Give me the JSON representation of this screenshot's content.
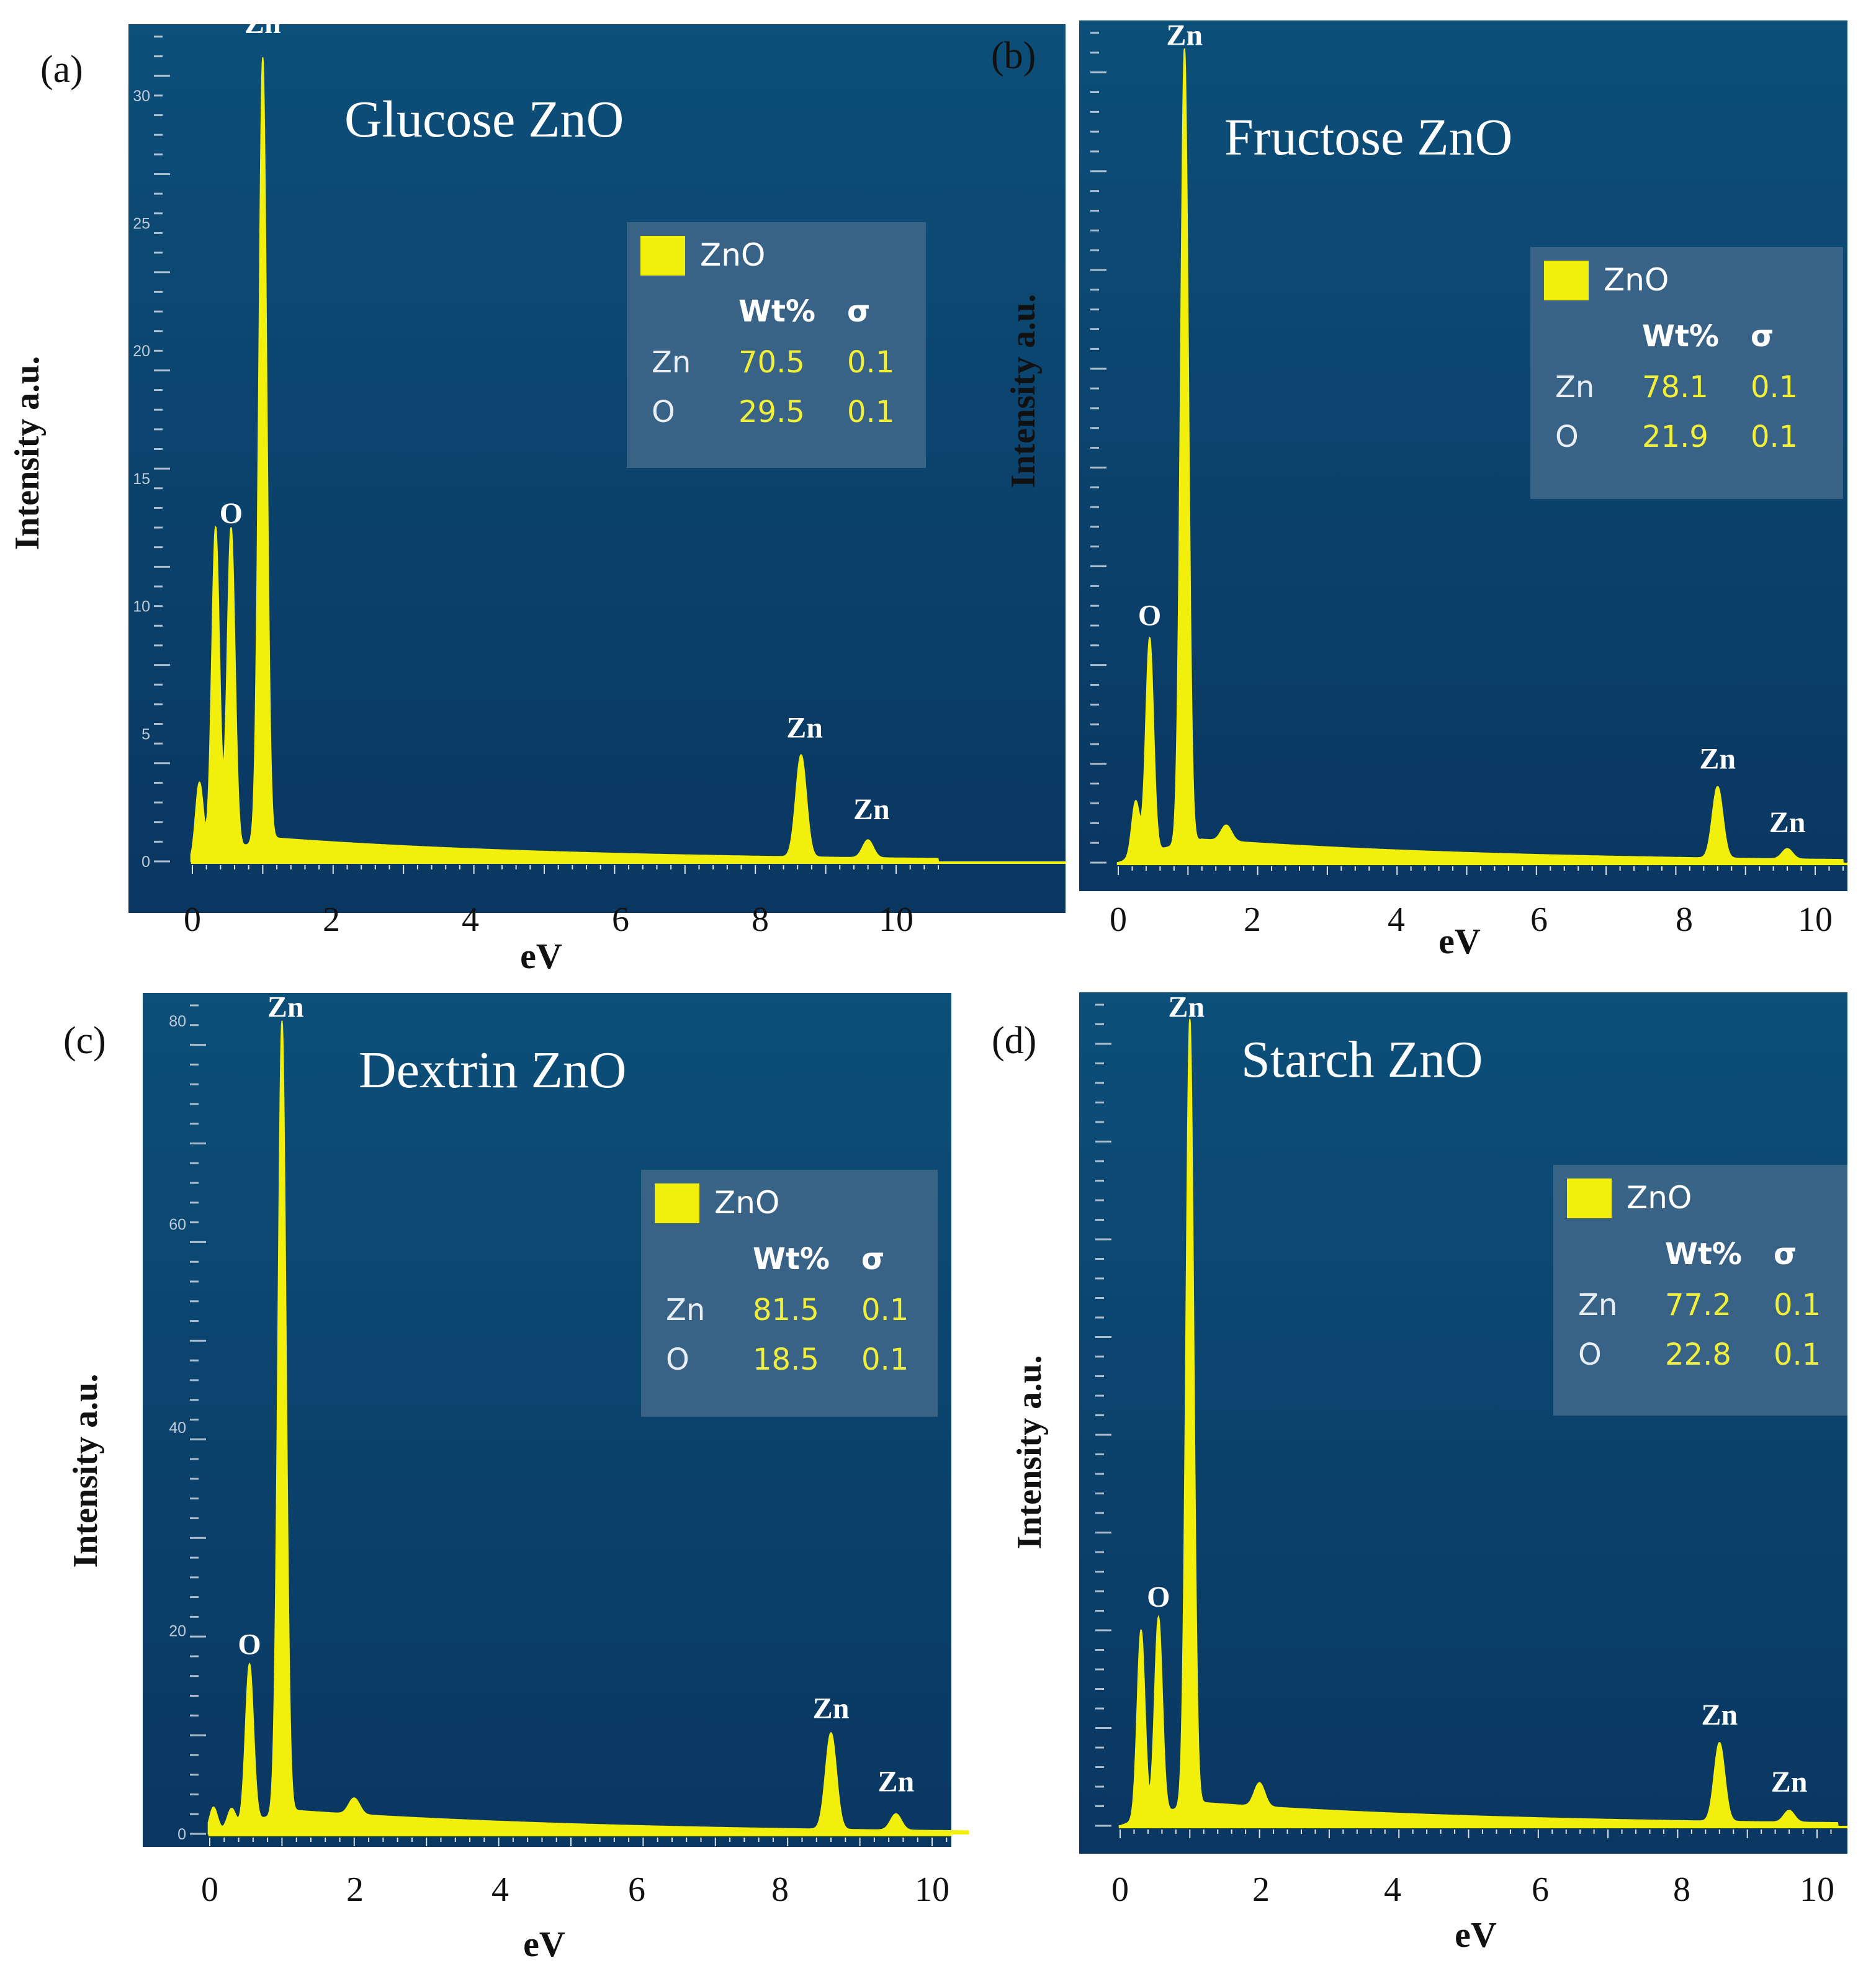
{
  "figure": {
    "panels": [
      {
        "tag": "(a)",
        "title": "Glucose ZnO",
        "ylabel": "Intensity a.u.",
        "xlabel": "eV",
        "xticks": [
          "0",
          "2",
          "4",
          "6",
          "8",
          "10"
        ],
        "yticks": [
          "0",
          "5",
          "10",
          "15",
          "20",
          "25",
          "30"
        ],
        "peak_labels": [
          {
            "text": "Zn",
            "ev": 1.0,
            "at": 32.5
          },
          {
            "text": "O",
            "ev": 0.55,
            "at": 13.3
          },
          {
            "text": "Zn",
            "ev": 8.7,
            "at": 4.9
          },
          {
            "text": "Zn",
            "ev": 9.65,
            "at": 1.7
          }
        ],
        "legend": {
          "name": "ZnO",
          "col_wt": "Wt%",
          "col_sigma": "σ",
          "rows": [
            {
              "el": "Zn",
              "wt": "70.5",
              "sigma": "0.1"
            },
            {
              "el": "O",
              "wt": "29.5",
              "sigma": "0.1"
            }
          ]
        }
      },
      {
        "tag": "(b)",
        "title": "Fructose ZnO",
        "ylabel": "Intensity a.u.",
        "xlabel": "eV",
        "xticks": [
          "0",
          "2",
          "4",
          "6",
          "8",
          "10"
        ],
        "yticks": [],
        "peak_labels": [
          {
            "text": "Zn",
            "ev": 0.95,
            "at": 1.03
          },
          {
            "text": "O",
            "ev": 0.45,
            "at": 0.3
          },
          {
            "text": "Zn",
            "ev": 8.6,
            "at": 0.12
          },
          {
            "text": "Zn",
            "ev": 9.6,
            "at": 0.04
          }
        ],
        "legend": {
          "name": "ZnO",
          "col_wt": "Wt%",
          "col_sigma": "σ",
          "rows": [
            {
              "el": "Zn",
              "wt": "78.1",
              "sigma": "0.1"
            },
            {
              "el": "O",
              "wt": "21.9",
              "sigma": "0.1"
            }
          ]
        }
      },
      {
        "tag": "(c)",
        "title": "Dextrin ZnO",
        "ylabel": "Intensity a.u.",
        "xlabel": "eV",
        "xticks": [
          "0",
          "2",
          "4",
          "6",
          "8",
          "10"
        ],
        "yticks": [
          "0",
          "20",
          "40",
          "60",
          "80"
        ],
        "peak_labels": [
          {
            "text": "Zn",
            "ev": 1.05,
            "at": 80.5
          },
          {
            "text": "O",
            "ev": 0.55,
            "at": 17.8
          },
          {
            "text": "Zn",
            "ev": 8.6,
            "at": 11.5
          },
          {
            "text": "Zn",
            "ev": 9.5,
            "at": 4.3
          }
        ],
        "legend": {
          "name": "ZnO",
          "col_wt": "Wt%",
          "col_sigma": "σ",
          "rows": [
            {
              "el": "Zn",
              "wt": "81.5",
              "sigma": "0.1"
            },
            {
              "el": "O",
              "wt": "18.5",
              "sigma": "0.1"
            }
          ]
        }
      },
      {
        "tag": "(d)",
        "title": "Starch ZnO",
        "ylabel": "Intensity a.u.",
        "xlabel": "eV",
        "xticks": [
          "0",
          "2",
          "4",
          "6",
          "8",
          "10"
        ],
        "yticks": [],
        "peak_labels": [
          {
            "text": "Zn",
            "ev": 0.95,
            "at": 1.03
          },
          {
            "text": "O",
            "ev": 0.55,
            "at": 0.28
          },
          {
            "text": "Zn",
            "ev": 8.6,
            "at": 0.13
          },
          {
            "text": "Zn",
            "ev": 9.6,
            "at": 0.045
          }
        ],
        "legend": {
          "name": "ZnO",
          "col_wt": "Wt%",
          "col_sigma": "σ",
          "rows": [
            {
              "el": "Zn",
              "wt": "77.2",
              "sigma": "0.1"
            },
            {
              "el": "O",
              "wt": "22.8",
              "sigma": "0.1"
            }
          ]
        }
      }
    ]
  },
  "colors": {
    "plot_bg_top": "#0c4f79",
    "plot_bg_bottom": "#0a3761",
    "spectrum": "#f2ef0c",
    "legend_bg": "#3d6688"
  },
  "chart_data": [
    {
      "type": "area",
      "title": "Glucose ZnO",
      "xlabel": "eV",
      "ylabel": "Intensity a.u.",
      "xlim": [
        -0.9,
        10.6
      ],
      "ylim": [
        -0.5,
        32.5
      ],
      "grid": false,
      "legend": "top-right",
      "peaks": [
        {
          "x": 0.1,
          "y": 3.0
        },
        {
          "x": 0.33,
          "y": 12.8
        },
        {
          "x": 0.55,
          "y": 12.6
        },
        {
          "x": 1.0,
          "y": 30.7
        },
        {
          "x": 8.65,
          "y": 4.0
        },
        {
          "x": 9.6,
          "y": 0.7
        }
      ],
      "series": [
        {
          "name": "ZnO",
          "composition": [
            {
              "element": "Zn",
              "wt_percent": 70.5,
              "sigma": 0.1
            },
            {
              "element": "O",
              "wt_percent": 29.5,
              "sigma": 0.1
            }
          ]
        }
      ]
    },
    {
      "type": "area",
      "title": "Fructose ZnO",
      "xlabel": "eV",
      "ylabel": "Intensity a.u.",
      "xlim": [
        -0.55,
        10.4
      ],
      "ylim": [
        -0.01,
        1.05
      ],
      "grid": false,
      "legend": "top-right",
      "peaks": [
        {
          "x": 0.25,
          "y": 0.07
        },
        {
          "x": 0.45,
          "y": 0.27
        },
        {
          "x": 0.95,
          "y": 1.0
        },
        {
          "x": 1.55,
          "y": 0.02
        },
        {
          "x": 8.6,
          "y": 0.09
        },
        {
          "x": 9.6,
          "y": 0.013
        }
      ],
      "series": [
        {
          "name": "ZnO",
          "composition": [
            {
              "element": "Zn",
              "wt_percent": 78.1,
              "sigma": 0.1
            },
            {
              "element": "O",
              "wt_percent": 21.9,
              "sigma": 0.1
            }
          ]
        }
      ]
    },
    {
      "type": "area",
      "title": "Dextrin ZnO",
      "xlabel": "eV",
      "ylabel": "Intensity a.u.",
      "xlim": [
        -0.8,
        10.5
      ],
      "ylim": [
        -1.5,
        82
      ],
      "grid": false,
      "legend": "top-right",
      "peaks": [
        {
          "x": 0.05,
          "y": 2.5
        },
        {
          "x": 0.3,
          "y": 1.8
        },
        {
          "x": 0.55,
          "y": 15.5
        },
        {
          "x": 1.0,
          "y": 78.0
        },
        {
          "x": 2.0,
          "y": 1.6
        },
        {
          "x": 8.6,
          "y": 9.5
        },
        {
          "x": 9.5,
          "y": 1.6
        }
      ],
      "series": [
        {
          "name": "ZnO",
          "composition": [
            {
              "element": "Zn",
              "wt_percent": 81.5,
              "sigma": 0.1
            },
            {
              "element": "O",
              "wt_percent": 18.5,
              "sigma": 0.1
            }
          ]
        }
      ]
    },
    {
      "type": "area",
      "title": "Starch ZnO",
      "xlabel": "eV",
      "ylabel": "Intensity a.u.",
      "xlim": [
        -0.5,
        10.3
      ],
      "ylim": [
        -0.01,
        1.05
      ],
      "grid": false,
      "legend": "top-right",
      "peaks": [
        {
          "x": 0.3,
          "y": 0.24
        },
        {
          "x": 0.55,
          "y": 0.25
        },
        {
          "x": 1.0,
          "y": 1.0
        },
        {
          "x": 2.0,
          "y": 0.03
        },
        {
          "x": 8.6,
          "y": 0.1
        },
        {
          "x": 9.6,
          "y": 0.015
        }
      ],
      "series": [
        {
          "name": "ZnO",
          "composition": [
            {
              "element": "Zn",
              "wt_percent": 77.2,
              "sigma": 0.1
            },
            {
              "element": "O",
              "wt_percent": 22.8,
              "sigma": 0.1
            }
          ]
        }
      ]
    }
  ]
}
